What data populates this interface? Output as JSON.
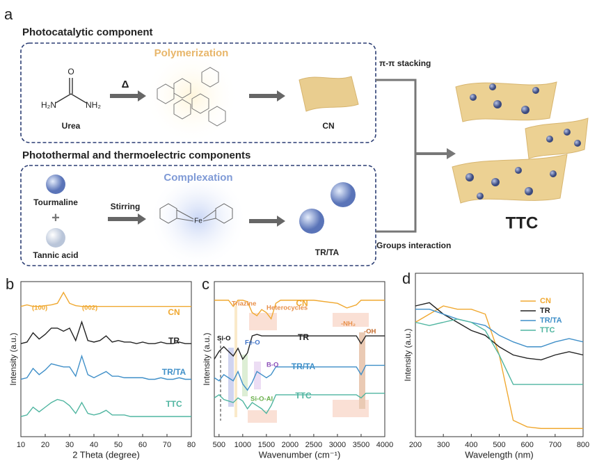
{
  "figure": {
    "panel_a": "a",
    "panel_b": "b",
    "panel_c": "c",
    "panel_d": "d",
    "photocatalytic": "Photocatalytic component",
    "polymerization": "Polymerization",
    "urea": "Urea",
    "urea_left": "H₂N",
    "urea_right": "NH₂",
    "urea_o": "O",
    "heat": "Δ",
    "cn": "CN",
    "stacking": "π-π stacking",
    "photothermal": "Photothermal and thermoelectric components",
    "complexation": "Complexation",
    "tourmaline": "Tourmaline",
    "plus": "+",
    "tannic": "Tannic acid",
    "stirring": "Stirring",
    "fe": "Fe",
    "trta": "TR/TA",
    "groups": "Groups interaction",
    "ttc": "TTC"
  },
  "chart_data": [
    {
      "type": "line",
      "xlabel": "2 Theta (degree)",
      "ylabel": "Intensity (a.u.)",
      "x": [
        10,
        12.5,
        15,
        17.5,
        20,
        22.5,
        25,
        27.5,
        30,
        32.5,
        35,
        37.5,
        40,
        42.5,
        45,
        47.5,
        50,
        52.5,
        55,
        57.5,
        60,
        62.5,
        65,
        67.5,
        70,
        72.5,
        75,
        77.5,
        80
      ],
      "xlim": [
        10,
        80
      ],
      "xticks": [
        10,
        20,
        30,
        40,
        50,
        60,
        70,
        80
      ],
      "ylim": [
        0,
        100
      ],
      "series": [
        {
          "name": "CN",
          "color": "#f0a830",
          "values": [
            84,
            85,
            84,
            84,
            84.5,
            85,
            86,
            93,
            86,
            84.5,
            84,
            84,
            84,
            84,
            84,
            84,
            84,
            84,
            84,
            84,
            84,
            84,
            84,
            84,
            84,
            84,
            84,
            84,
            84
          ]
        },
        {
          "name": "TR",
          "color": "#222222",
          "values": [
            60,
            61,
            67,
            63,
            66,
            70,
            70,
            68,
            70,
            62,
            74,
            62,
            61,
            62,
            65,
            61,
            62,
            61,
            61,
            60,
            61,
            60,
            60,
            61,
            60,
            60,
            61,
            60,
            60
          ]
        },
        {
          "name": "TR/TA",
          "color": "#3f8fc8",
          "values": [
            37,
            38,
            44,
            40,
            43,
            47,
            46,
            45,
            45,
            39,
            52,
            40,
            38,
            40,
            42,
            39,
            39,
            38,
            38,
            38,
            38,
            37,
            37,
            38,
            37,
            37,
            38,
            37,
            37
          ]
        },
        {
          "name": "TTC",
          "color": "#4fb5a0",
          "values": [
            13,
            14,
            19,
            16,
            19,
            22,
            24,
            23,
            20,
            15,
            22,
            15,
            14,
            15,
            17,
            14,
            14,
            14,
            13,
            13,
            13,
            13,
            13,
            13,
            13,
            13,
            13,
            13,
            13
          ]
        }
      ],
      "annotations": [
        "(100)",
        "(002)"
      ]
    },
    {
      "type": "line",
      "xlabel": "Wavenumber (cm⁻¹)",
      "ylabel": "Intensity (a.u.)",
      "x": [
        400,
        500,
        600,
        700,
        800,
        900,
        1000,
        1100,
        1200,
        1300,
        1400,
        1500,
        1600,
        1700,
        1800,
        2000,
        2500,
        3000,
        3200,
        3400,
        3500,
        3600,
        4000
      ],
      "xlim": [
        400,
        4000
      ],
      "xticks": [
        500,
        1000,
        1500,
        2000,
        2500,
        3000,
        3500,
        4000
      ],
      "ylim": [
        0,
        100
      ],
      "series": [
        {
          "name": "CN",
          "color": "#f0a830",
          "values": [
            88,
            88,
            88,
            88,
            84,
            88,
            88,
            87,
            80,
            78,
            82,
            80,
            76,
            86,
            88,
            88,
            88,
            86,
            83,
            85,
            88,
            88,
            88
          ]
        },
        {
          "name": "TR",
          "color": "#222222",
          "values": [
            50,
            55,
            58,
            55,
            52,
            57,
            50,
            54,
            65,
            66,
            65,
            65,
            65,
            65,
            65,
            65,
            65,
            65,
            65,
            65,
            60,
            65,
            65
          ]
        },
        {
          "name": "TR/TA",
          "color": "#3f8fc8",
          "values": [
            38,
            36,
            40,
            38,
            36,
            42,
            34,
            30,
            35,
            42,
            40,
            38,
            40,
            45,
            45,
            45,
            45,
            45,
            45,
            45,
            40,
            46,
            46
          ]
        },
        {
          "name": "TTC",
          "color": "#4fb5a0",
          "values": [
            25,
            27,
            24,
            23,
            22,
            25,
            23,
            18,
            22,
            20,
            18,
            15,
            20,
            27,
            27,
            27,
            27,
            27,
            27,
            27,
            25,
            28,
            28
          ]
        }
      ],
      "annotations": [
        "Triazine",
        "Heterocycles",
        "-NH₂",
        "-OH",
        "Si-O",
        "Fe-O",
        "B-O",
        "Si-O-Al"
      ]
    },
    {
      "type": "line",
      "xlabel": "Wavelength (nm)",
      "ylabel": "Intensity (a.u.)",
      "legend": "upper right",
      "x": [
        200,
        250,
        300,
        350,
        400,
        450,
        500,
        550,
        600,
        650,
        700,
        750,
        800
      ],
      "xlim": [
        200,
        800
      ],
      "xticks": [
        200,
        300,
        400,
        500,
        600,
        700,
        800
      ],
      "ylim": [
        0,
        100
      ],
      "series": [
        {
          "name": "CN",
          "color": "#f0a830",
          "values": [
            70,
            75,
            80,
            78,
            78,
            75,
            50,
            10,
            6,
            5,
            5,
            5,
            5
          ]
        },
        {
          "name": "TR",
          "color": "#222222",
          "values": [
            80,
            82,
            75,
            70,
            65,
            62,
            55,
            50,
            48,
            47,
            50,
            52,
            50
          ]
        },
        {
          "name": "TR/TA",
          "color": "#3f8fc8",
          "values": [
            78,
            78,
            75,
            72,
            70,
            68,
            62,
            58,
            55,
            55,
            58,
            60,
            58
          ]
        },
        {
          "name": "TTC",
          "color": "#4fb5a0",
          "values": [
            70,
            68,
            70,
            72,
            70,
            65,
            50,
            32,
            32,
            32,
            32,
            32,
            32
          ]
        }
      ],
      "annotations": []
    }
  ]
}
